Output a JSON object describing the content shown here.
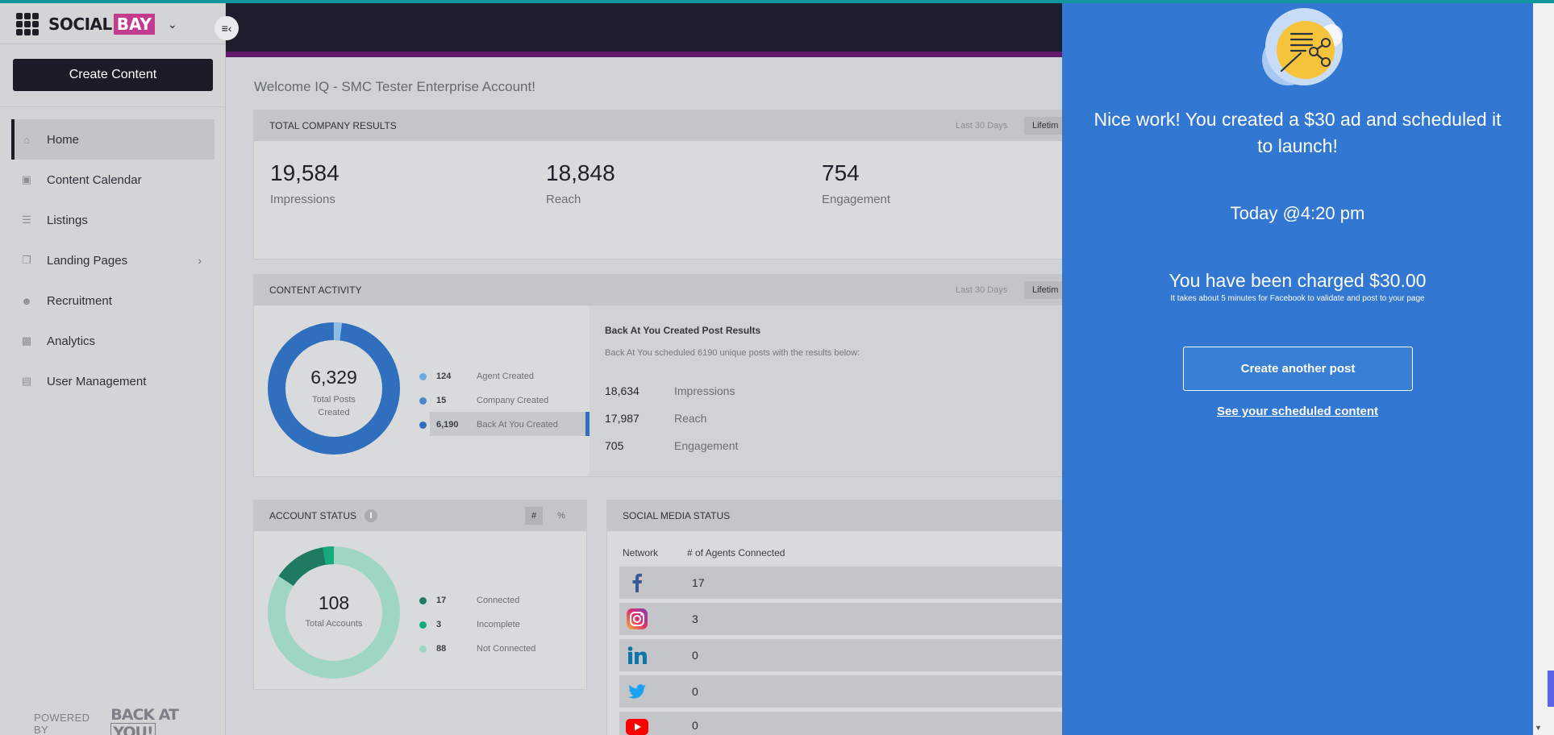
{
  "brand": {
    "name_part1": "SOCIAL",
    "name_part2": "BAY"
  },
  "sidebar": {
    "create_label": "Create Content",
    "items": [
      {
        "label": "Home",
        "icon": "home-icon"
      },
      {
        "label": "Content Calendar",
        "icon": "calendar-icon"
      },
      {
        "label": "Listings",
        "icon": "list-icon"
      },
      {
        "label": "Landing Pages",
        "icon": "page-icon"
      },
      {
        "label": "Recruitment",
        "icon": "add-user-icon"
      },
      {
        "label": "Analytics",
        "icon": "bar-chart-icon"
      },
      {
        "label": "User Management",
        "icon": "user-list-icon"
      }
    ],
    "powered_by": "POWERED BY",
    "powered_logo_1": "BACK AT",
    "powered_logo_2": "YOU!"
  },
  "main": {
    "welcome": "Welcome IQ - SMC Tester Enterprise Account!",
    "company": {
      "title": "TOTAL COMPANY RESULTS",
      "range": "Last 30 Days",
      "range_btn": "Lifetim",
      "stats": [
        {
          "value": "19,584",
          "label": "Impressions"
        },
        {
          "value": "18,848",
          "label": "Reach"
        },
        {
          "value": "754",
          "label": "Engagement"
        }
      ]
    },
    "activity": {
      "title": "CONTENT ACTIVITY",
      "range": "Last 30 Days",
      "range_btn": "Lifetim",
      "total": "6,329",
      "total_label_1": "Total Posts",
      "total_label_2": "Created",
      "legend": [
        {
          "value": "124",
          "label": "Agent Created",
          "color": "#6fa8dc"
        },
        {
          "value": "15",
          "label": "Company Created",
          "color": "#4a86c8"
        },
        {
          "value": "6,190",
          "label": "Back At You Created",
          "color": "#2f6fbd"
        }
      ],
      "bay_title": "Back At You Created Post Results",
      "bay_sub": "Back At You scheduled 6190 unique posts with the results below:",
      "bay_rows": [
        {
          "value": "18,634",
          "label": "Impressions"
        },
        {
          "value": "17,987",
          "label": "Reach"
        },
        {
          "value": "705",
          "label": "Engagement"
        }
      ]
    },
    "account": {
      "title": "ACCOUNT STATUS",
      "toggle_hash": "#",
      "toggle_pct": "%",
      "total": "108",
      "total_label": "Total Accounts",
      "legend": [
        {
          "value": "17",
          "label": "Connected",
          "color": "#1e7a63"
        },
        {
          "value": "3",
          "label": "Incomplete",
          "color": "#16a97c"
        },
        {
          "value": "88",
          "label": "Not Connected",
          "color": "#9fd6c3"
        }
      ]
    },
    "social": {
      "title": "SOCIAL MEDIA STATUS",
      "col_network": "Network",
      "col_agents": "# of Agents Connected",
      "rows": [
        {
          "network": "facebook-icon",
          "value": "17"
        },
        {
          "network": "instagram-icon",
          "value": "3"
        },
        {
          "network": "linkedin-icon",
          "value": "0"
        },
        {
          "network": "twitter-icon",
          "value": "0"
        },
        {
          "network": "youtube-icon",
          "value": "0"
        }
      ]
    }
  },
  "panel": {
    "message": "Nice work! You created a $30 ad and scheduled it to launch!",
    "time": "Today @4:20 pm",
    "charged": "You have been charged $30.00",
    "note": "It takes about 5 minutes for Facebook to validate and post to your page",
    "create_another": "Create another post",
    "see_scheduled": "See your scheduled content"
  }
}
